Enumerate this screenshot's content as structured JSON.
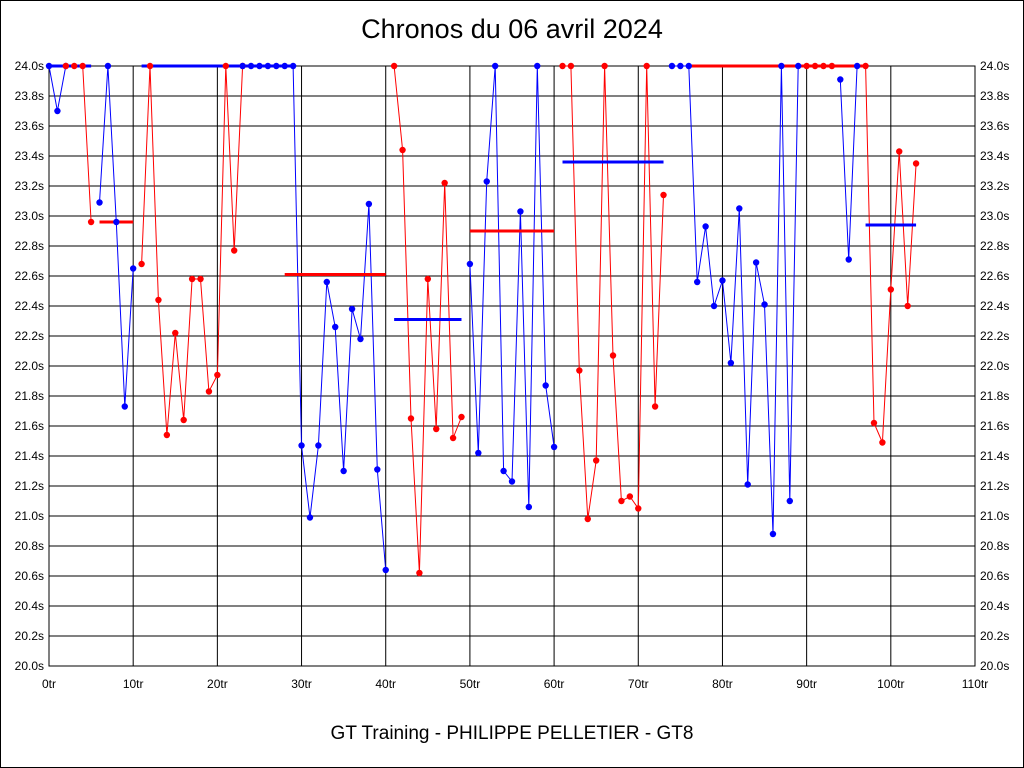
{
  "chart_data": {
    "type": "line",
    "title": "Chronos du 06 avril 2024",
    "footer": "GT Training - PHILIPPE PELLETIER - GT8",
    "x_unit": "tr",
    "y_unit": "s",
    "xlim": [
      0,
      110
    ],
    "ylim": [
      20.0,
      24.0
    ],
    "x_ticks": [
      0,
      10,
      20,
      30,
      40,
      50,
      60,
      70,
      80,
      90,
      100,
      110
    ],
    "y_ticks": [
      20.0,
      20.2,
      20.4,
      20.6,
      20.8,
      21.0,
      21.2,
      21.4,
      21.6,
      21.8,
      22.0,
      22.2,
      22.4,
      22.6,
      22.8,
      23.0,
      23.2,
      23.4,
      23.6,
      23.8,
      24.0
    ],
    "grid": true,
    "colors": {
      "blue": "#0000ff",
      "red": "#ff0000"
    },
    "series": [
      {
        "color": "blue",
        "points": [
          [
            0,
            24.0
          ],
          [
            1,
            23.7
          ],
          [
            2,
            24.0
          ]
        ]
      },
      {
        "color": "red",
        "points": [
          [
            2,
            24.0
          ],
          [
            3,
            24.0
          ],
          [
            4,
            24.0
          ],
          [
            5,
            22.96
          ]
        ]
      },
      {
        "color": "blue",
        "points": [
          [
            6,
            23.09
          ],
          [
            7,
            24.0
          ],
          [
            8,
            22.96
          ],
          [
            9,
            21.73
          ],
          [
            10,
            22.65
          ]
        ]
      },
      {
        "color": "red",
        "points": [
          [
            11,
            22.68
          ],
          [
            12,
            24.0
          ],
          [
            13,
            22.44
          ],
          [
            14,
            21.54
          ],
          [
            15,
            22.22
          ],
          [
            16,
            21.64
          ],
          [
            17,
            22.58
          ],
          [
            18,
            22.58
          ],
          [
            19,
            21.83
          ],
          [
            20,
            21.94
          ],
          [
            21,
            24.0
          ],
          [
            22,
            22.77
          ],
          [
            23,
            24.0
          ]
        ]
      },
      {
        "color": "blue",
        "points": [
          [
            23,
            24.0
          ],
          [
            24,
            24.0
          ],
          [
            25,
            24.0
          ],
          [
            26,
            24.0
          ],
          [
            27,
            24.0
          ],
          [
            28,
            24.0
          ],
          [
            29,
            24.0
          ],
          [
            30,
            21.47
          ],
          [
            31,
            20.99
          ],
          [
            32,
            21.47
          ],
          [
            33,
            22.56
          ],
          [
            34,
            22.26
          ],
          [
            35,
            21.3
          ],
          [
            36,
            22.38
          ],
          [
            37,
            22.18
          ],
          [
            38,
            23.08
          ],
          [
            39,
            21.31
          ],
          [
            40,
            20.64
          ]
        ]
      },
      {
        "color": "red",
        "points": [
          [
            41,
            24.0
          ],
          [
            42,
            23.44
          ],
          [
            43,
            21.65
          ],
          [
            44,
            20.62
          ],
          [
            45,
            22.58
          ],
          [
            46,
            21.58
          ],
          [
            47,
            23.22
          ],
          [
            48,
            21.52
          ],
          [
            49,
            21.66
          ]
        ]
      },
      {
        "color": "blue",
        "points": [
          [
            50,
            22.68
          ],
          [
            51,
            21.42
          ],
          [
            52,
            23.23
          ],
          [
            53,
            24.0
          ],
          [
            54,
            21.3
          ],
          [
            55,
            21.23
          ],
          [
            56,
            23.03
          ],
          [
            57,
            21.06
          ],
          [
            58,
            24.0
          ],
          [
            59,
            21.87
          ],
          [
            60,
            21.46
          ]
        ]
      },
      {
        "color": "red",
        "points": [
          [
            61,
            24.0
          ],
          [
            62,
            24.0
          ],
          [
            63,
            21.97
          ],
          [
            64,
            20.98
          ],
          [
            65,
            21.37
          ],
          [
            66,
            24.0
          ],
          [
            67,
            22.07
          ],
          [
            68,
            21.1
          ],
          [
            69,
            21.13
          ],
          [
            70,
            21.05
          ],
          [
            71,
            24.0
          ],
          [
            72,
            21.73
          ],
          [
            73,
            23.14
          ]
        ]
      },
      {
        "color": "blue",
        "points": [
          [
            74,
            24.0
          ],
          [
            75,
            24.0
          ],
          [
            76,
            24.0
          ],
          [
            77,
            22.56
          ],
          [
            78,
            22.93
          ],
          [
            79,
            22.4
          ],
          [
            80,
            22.57
          ],
          [
            81,
            22.02
          ],
          [
            82,
            23.05
          ],
          [
            83,
            21.21
          ],
          [
            84,
            22.69
          ],
          [
            85,
            22.41
          ],
          [
            86,
            20.88
          ],
          [
            87,
            24.0
          ],
          [
            88,
            21.1
          ],
          [
            89,
            24.0
          ]
        ]
      },
      {
        "color": "red",
        "points": [
          [
            90,
            24.0
          ],
          [
            91,
            24.0
          ],
          [
            92,
            24.0
          ],
          [
            93,
            24.0
          ]
        ]
      },
      {
        "color": "blue",
        "points": [
          [
            94,
            23.91
          ],
          [
            95,
            22.71
          ],
          [
            96,
            24.0
          ]
        ]
      },
      {
        "color": "red",
        "points": [
          [
            97,
            24.0
          ],
          [
            98,
            21.62
          ],
          [
            99,
            21.49
          ],
          [
            100,
            22.51
          ],
          [
            101,
            23.43
          ],
          [
            102,
            22.4
          ],
          [
            103,
            23.35
          ]
        ]
      }
    ],
    "averages": [
      {
        "color": "red",
        "x": [
          0,
          5
        ],
        "y": 24.0
      },
      {
        "color": "blue",
        "x": [
          0,
          5
        ],
        "y": 24.0
      },
      {
        "color": "red",
        "x": [
          6,
          10
        ],
        "y": 22.96
      },
      {
        "color": "blue",
        "x": [
          11,
          29
        ],
        "y": 24.0
      },
      {
        "color": "red",
        "x": [
          28,
          40
        ],
        "y": 22.61
      },
      {
        "color": "blue",
        "x": [
          41,
          49
        ],
        "y": 22.31
      },
      {
        "color": "red",
        "x": [
          50,
          60
        ],
        "y": 22.9
      },
      {
        "color": "blue",
        "x": [
          61,
          73
        ],
        "y": 23.36
      },
      {
        "color": "red",
        "x": [
          76,
          97
        ],
        "y": 24.0
      },
      {
        "color": "blue",
        "x": [
          97,
          103
        ],
        "y": 22.94
      }
    ]
  }
}
